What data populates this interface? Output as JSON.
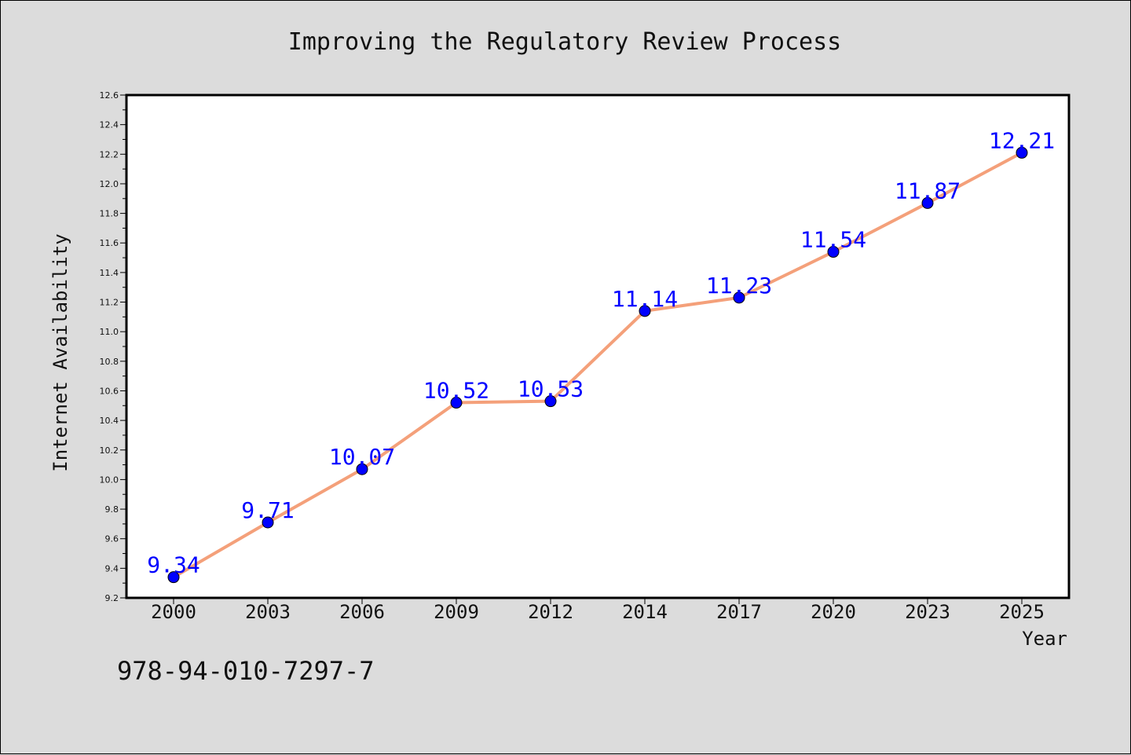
{
  "chart_data": {
    "type": "line",
    "title": "Improving the Regulatory Review Process",
    "xlabel": "Year",
    "ylabel": "Internet Availability",
    "categories": [
      "2000",
      "2003",
      "2006",
      "2009",
      "2012",
      "2014",
      "2017",
      "2020",
      "2023",
      "2025"
    ],
    "values": [
      9.34,
      9.71,
      10.07,
      10.52,
      10.53,
      11.14,
      11.23,
      11.54,
      11.87,
      12.21
    ],
    "data_labels": [
      "9.34",
      "9.71",
      "10.07",
      "10.52",
      "10.53",
      "11.14",
      "11.23",
      "11.54",
      "11.87",
      "12.21"
    ],
    "ylim": [
      9.2,
      12.6
    ],
    "yticks": [
      "9.2",
      "9.4",
      "9.6",
      "9.8",
      "10.0",
      "10.2",
      "10.4",
      "10.6",
      "10.8",
      "11.0",
      "11.2",
      "11.4",
      "11.6",
      "11.8",
      "12.0",
      "12.2",
      "12.4",
      "12.6"
    ],
    "grid": false,
    "legend": "none",
    "colors": {
      "line": "#f4a07a",
      "marker": "#0000ff",
      "label": "#0000ff",
      "background": "#dcdcdc",
      "plot_background": "#ffffff"
    }
  },
  "footer": {
    "code": "978-94-010-7297-7"
  }
}
